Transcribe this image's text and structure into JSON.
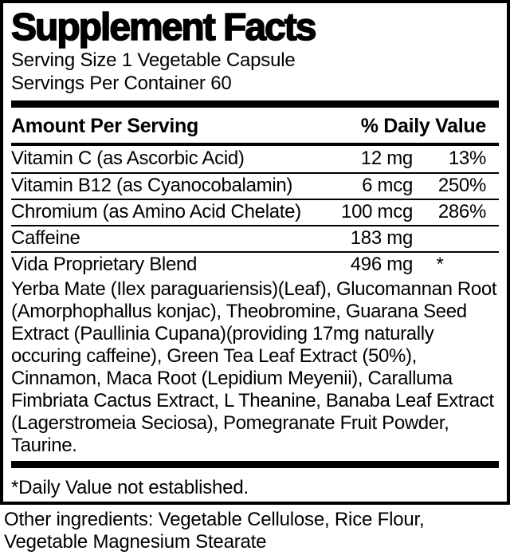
{
  "label": {
    "title": "Supplement Facts",
    "serving_size": "Serving Size 1 Vegetable Capsule",
    "servings_per_container": "Servings Per Container 60",
    "columns": {
      "amount_header": "Amount Per Serving",
      "dv_header": "% Daily Value"
    },
    "rows": [
      {
        "name": "Vitamin C (as Ascorbic Acid)",
        "amount": "12 mg",
        "dv": "13%"
      },
      {
        "name": "Vitamin B12 (as Cyanocobalamin)",
        "amount": "6 mcg",
        "dv": "250%"
      },
      {
        "name": "Chromium (as Amino Acid Chelate)",
        "amount": "100 mcg",
        "dv": "286%"
      },
      {
        "name": "Caffeine",
        "amount": "183 mg",
        "dv": ""
      },
      {
        "name": "Vida Proprietary Blend",
        "amount": "496 mg",
        "dv": "*"
      }
    ],
    "blend_description": "Yerba Mate (Ilex paraguariensis)(Leaf), Glucomannan Root (Amorphophallus konjac), Theobromine, Guarana Seed Extract (Paullinia Cupana)(providing 17mg naturally occuring caffeine), Green Tea Leaf Extract (50%), Cinnamon, Maca Root (Lepidium Meyenii), Caralluma Fimbriata Cactus Extract, L Theanine, Banaba Leaf Extract (Lagerstromeia Seciosa), Pomegranate Fruit Powder, Taurine.",
    "footnote": "*Daily Value not established.",
    "other_ingredients": "Other ingredients: Vegetable Cellulose, Rice Flour, Vegetable Magnesium Stearate"
  },
  "colors": {
    "text": "#000000",
    "background": "#ffffff",
    "border": "#000000"
  }
}
